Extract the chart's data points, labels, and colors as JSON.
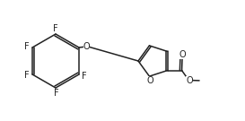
{
  "bg_color": "#ffffff",
  "line_color": "#222222",
  "line_width": 1.1,
  "font_size": 7.0,
  "font_color": "#222222",
  "figsize": [
    2.73,
    1.35
  ],
  "dpi": 100,
  "xlim": [
    0.0,
    2.73
  ],
  "ylim": [
    0.0,
    1.35
  ]
}
